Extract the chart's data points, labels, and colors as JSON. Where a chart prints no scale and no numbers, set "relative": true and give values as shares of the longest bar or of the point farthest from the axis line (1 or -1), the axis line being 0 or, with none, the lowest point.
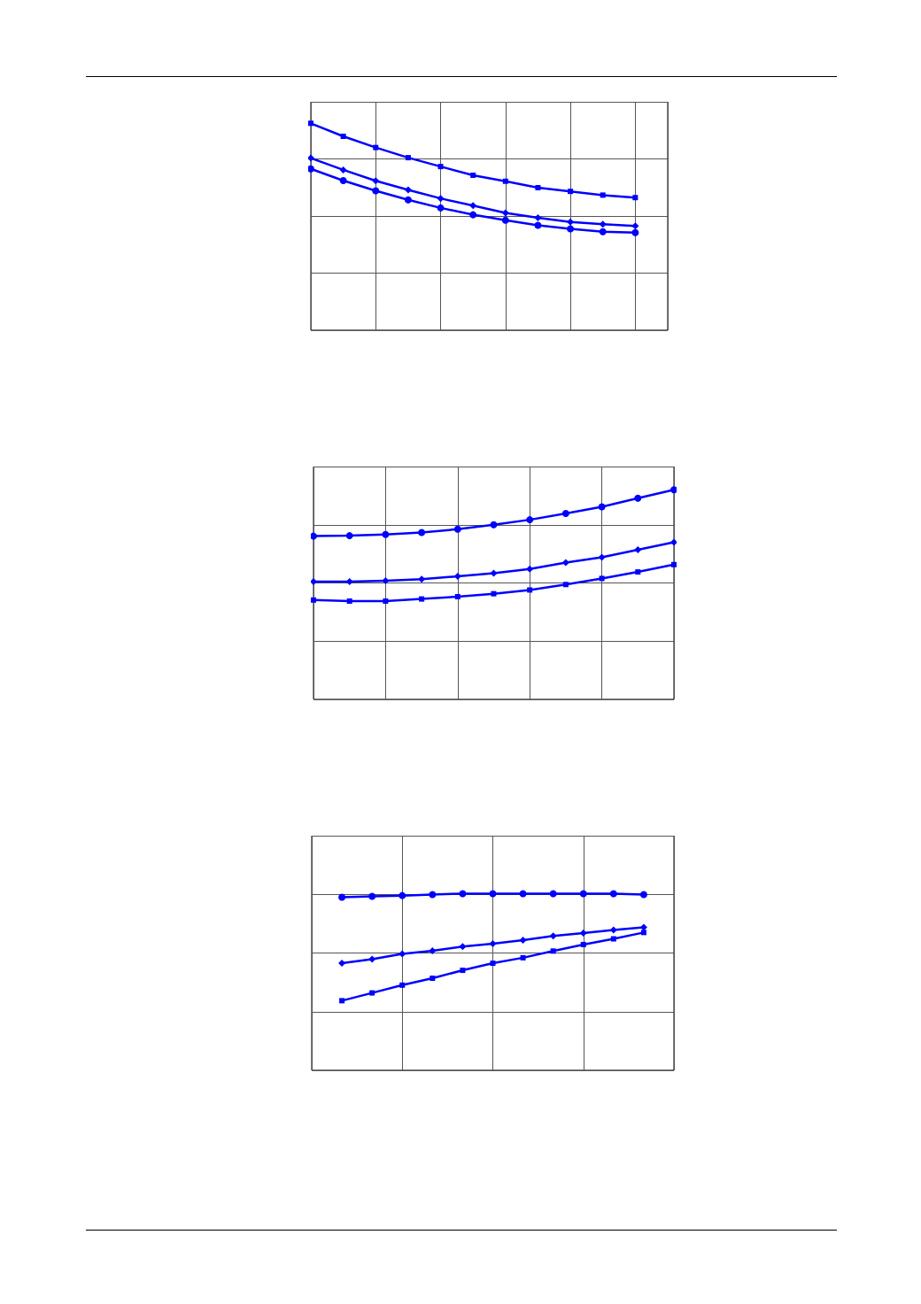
{
  "chart_data": [
    {
      "type": "line",
      "relative": true,
      "grid": true,
      "line_style": "solid",
      "categories": [
        null,
        null,
        null,
        null,
        null,
        null,
        null,
        null,
        null,
        null,
        null,
        null
      ],
      "series": [
        {
          "color": "#0000ff",
          "marker": "square",
          "values": [
            1,
            0.937,
            0.883,
            0.834,
            0.791,
            0.749,
            0.72,
            0.689,
            0.671,
            0.653,
            0.641,
            null
          ]
        },
        {
          "color": "#0000ff",
          "marker": "diamond",
          "values": [
            0.832,
            0.775,
            0.722,
            0.678,
            0.637,
            0.602,
            0.567,
            0.543,
            0.523,
            0.512,
            0.504,
            null
          ]
        },
        {
          "color": "#0000ff",
          "marker": "circle",
          "values": [
            0.78,
            0.723,
            0.674,
            0.63,
            0.591,
            0.558,
            0.532,
            0.507,
            0.49,
            0.476,
            0.472,
            null
          ]
        }
      ]
    },
    {
      "type": "line",
      "relative": true,
      "grid": true,
      "line_style": "solid",
      "categories": [
        null,
        null,
        null,
        null,
        null,
        null,
        null,
        null,
        null,
        null,
        null
      ],
      "series": [
        {
          "color": "#0000ff",
          "marker": "circle",
          "values": [
            0.779,
            0.781,
            0.787,
            0.796,
            0.812,
            0.833,
            0.857,
            0.887,
            0.919,
            0.96,
            1
          ]
        },
        {
          "color": "#0000ff",
          "marker": "diamond",
          "values": [
            0.562,
            0.562,
            0.566,
            0.573,
            0.587,
            0.602,
            0.622,
            0.653,
            0.678,
            0.714,
            0.75
          ]
        },
        {
          "color": "#0000ff",
          "marker": "square",
          "values": [
            0.474,
            0.469,
            0.469,
            0.479,
            0.49,
            0.504,
            0.522,
            0.548,
            0.577,
            0.608,
            0.643
          ]
        }
      ]
    },
    {
      "type": "line",
      "relative": true,
      "grid": true,
      "line_style": "solid",
      "categories": [
        null,
        null,
        null,
        null,
        null,
        null,
        null,
        null,
        null,
        null,
        null,
        null,
        null
      ],
      "series": [
        {
          "color": "#0000ff",
          "marker": "circle",
          "values": [
            null,
            0.98,
            0.985,
            0.989,
            0.995,
            1,
            1,
            1,
            1,
            1,
            1,
            0.995,
            null
          ]
        },
        {
          "color": "#0000ff",
          "marker": "diamond",
          "values": [
            null,
            0.606,
            0.629,
            0.659,
            0.677,
            0.7,
            0.717,
            0.737,
            0.76,
            0.777,
            0.794,
            0.809,
            null
          ]
        },
        {
          "color": "#0000ff",
          "marker": "square",
          "values": [
            null,
            0.394,
            0.438,
            0.482,
            0.521,
            0.566,
            0.606,
            0.637,
            0.675,
            0.712,
            0.744,
            0.78,
            null
          ]
        }
      ]
    }
  ]
}
